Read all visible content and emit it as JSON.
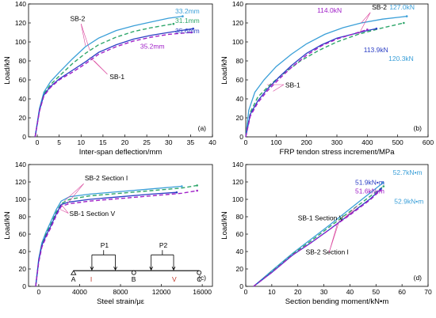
{
  "colors": {
    "sb2": "#3a9fd8",
    "sb2_dash": "#2ea66a",
    "sb1": "#2b3ec4",
    "sb1_dash": "#a020c8",
    "axis": "#000000",
    "pointer": "#d9409a"
  },
  "chart_data": [
    {
      "id": "a",
      "type": "line",
      "panel_label": "(a)",
      "xlabel": "Inter-span deflection/mm",
      "ylabel": "Load/kN",
      "xlim": [
        -2,
        40
      ],
      "ylim": [
        0,
        140
      ],
      "xticks": [
        "0",
        "5",
        "10",
        "15",
        "20",
        "25",
        "30",
        "35",
        "40"
      ],
      "yticks": [
        "0",
        "20",
        "40",
        "60",
        "80",
        "100",
        "120",
        "140"
      ],
      "grid": false,
      "series": [
        {
          "name": "SB-2",
          "style": "solid",
          "color": "sb2",
          "x": [
            -0.5,
            0.5,
            1.5,
            3,
            5,
            8,
            11,
            14,
            18,
            22,
            26,
            30,
            33.2
          ],
          "y": [
            0,
            30,
            47,
            58,
            68,
            82,
            95,
            104,
            112,
            117,
            121,
            125,
            127
          ]
        },
        {
          "name": "SB-2",
          "style": "dashed",
          "color": "sb2_dash",
          "x": [
            -0.5,
            0.5,
            1.5,
            3,
            5,
            8,
            11,
            14,
            18,
            22,
            26,
            31.1
          ],
          "y": [
            0,
            28,
            45,
            55,
            64,
            77,
            88,
            97,
            105,
            111,
            115,
            119
          ]
        },
        {
          "name": "SB-1",
          "style": "solid",
          "color": "sb1",
          "x": [
            -0.5,
            0.5,
            1.5,
            3,
            5,
            8,
            11,
            14,
            18,
            22,
            26,
            30,
            35.6
          ],
          "y": [
            0,
            28,
            44,
            53,
            61,
            70,
            79,
            89,
            97,
            103,
            107,
            110,
            114
          ]
        },
        {
          "name": "SB-1",
          "style": "dashed",
          "color": "sb1_dash",
          "x": [
            -0.5,
            0.5,
            1.5,
            3,
            5,
            8,
            11,
            14,
            18,
            22,
            26,
            30,
            35.2
          ],
          "y": [
            0,
            27,
            43,
            52,
            60,
            68,
            77,
            87,
            95,
            101,
            105,
            108,
            110
          ]
        }
      ],
      "labels": [
        {
          "text": "SB-2",
          "at": [
            7.5,
            122
          ]
        },
        {
          "text": "SB-1",
          "at": [
            16.5,
            61
          ]
        },
        {
          "text": "33.2mm",
          "at": [
            31.5,
            130
          ],
          "color": "sb2"
        },
        {
          "text": "31.1mm",
          "at": [
            31.5,
            120
          ],
          "color": "sb2_dash"
        },
        {
          "text": "35.6mm",
          "at": [
            31.5,
            109
          ],
          "color": "sb1"
        },
        {
          "text": "35.2mm",
          "at": [
            23.5,
            93
          ],
          "color": "sb1_dash"
        }
      ]
    },
    {
      "id": "b",
      "type": "line",
      "panel_label": "(b)",
      "xlabel": "FRP tendon stress increment/MPa",
      "ylabel": "Load/kN",
      "xlim": [
        0,
        600
      ],
      "ylim": [
        0,
        140
      ],
      "xticks": [
        "0",
        "100",
        "200",
        "300",
        "400",
        "500",
        "600"
      ],
      "yticks": [
        "0",
        "20",
        "40",
        "60",
        "80",
        "100",
        "120",
        "140"
      ],
      "grid": false,
      "series": [
        {
          "name": "SB-2",
          "style": "solid",
          "color": "sb2",
          "x": [
            0,
            10,
            30,
            60,
            100,
            150,
            200,
            260,
            320,
            380,
            450,
            530
          ],
          "y": [
            0,
            28,
            47,
            60,
            74,
            87,
            98,
            108,
            115,
            120,
            124,
            127
          ]
        },
        {
          "name": "SB-2",
          "style": "dashed",
          "color": "sb2_dash",
          "x": [
            0,
            15,
            40,
            80,
            130,
            180,
            240,
            300,
            370,
            440,
            520
          ],
          "y": [
            0,
            26,
            42,
            55,
            68,
            80,
            91,
            100,
            108,
            114,
            120
          ]
        },
        {
          "name": "SB-1",
          "style": "solid",
          "color": "sb1",
          "x": [
            0,
            15,
            40,
            70,
            110,
            150,
            200,
            250,
            300,
            350,
            400,
            430
          ],
          "y": [
            0,
            24,
            38,
            50,
            63,
            75,
            88,
            97,
            104,
            108,
            112,
            114
          ]
        },
        {
          "name": "SB-1",
          "style": "dashed",
          "color": "sb1_dash",
          "x": [
            0,
            15,
            40,
            70,
            110,
            150,
            200,
            250,
            300,
            350,
            400
          ],
          "y": [
            0,
            22,
            36,
            48,
            61,
            73,
            86,
            96,
            103,
            108,
            113
          ]
        }
      ],
      "labels": [
        {
          "text": "SB-2",
          "at": [
            415,
            134
          ]
        },
        {
          "text": "SB-1",
          "at": [
            130,
            52
          ]
        },
        {
          "text": "114.0kN",
          "at": [
            235,
            131
          ],
          "color": "sb1_dash"
        },
        {
          "text": "127.0kN",
          "at": [
            473,
            134
          ],
          "color": "sb2"
        },
        {
          "text": "113.9kN",
          "at": [
            388,
            89
          ],
          "color": "sb1"
        },
        {
          "text": "120.3kN",
          "at": [
            470,
            80
          ],
          "color": "sb2"
        }
      ]
    },
    {
      "id": "c",
      "type": "line",
      "panel_label": "(c)",
      "xlabel": "Steel strain/με",
      "ylabel": "Load/kN",
      "xlim": [
        -1000,
        17000
      ],
      "ylim": [
        0,
        140
      ],
      "xticks": [
        "0",
        "4000",
        "8000",
        "12000",
        "16000"
      ],
      "yticks": [
        "0",
        "20",
        "40",
        "60",
        "80",
        "100",
        "120",
        "140"
      ],
      "grid": false,
      "series": [
        {
          "name": "SB-2 Section I",
          "style": "solid",
          "color": "sb2",
          "x": [
            -300,
            0,
            300,
            700,
            1200,
            1700,
            2200,
            3000,
            5000,
            8000,
            11000,
            14000
          ],
          "y": [
            0,
            32,
            50,
            62,
            75,
            88,
            98,
            103,
            106,
            109,
            112,
            115
          ]
        },
        {
          "name": "SB-2 Section I",
          "style": "dashed",
          "color": "sb2_dash",
          "x": [
            -300,
            0,
            300,
            700,
            1200,
            1700,
            2200,
            3000,
            5000,
            8000,
            11000,
            14000,
            15500
          ],
          "y": [
            0,
            30,
            48,
            60,
            72,
            85,
            95,
            100,
            104,
            107,
            110,
            113,
            116
          ]
        },
        {
          "name": "SB-1 Section V",
          "style": "solid",
          "color": "sb1",
          "x": [
            -300,
            0,
            300,
            700,
            1200,
            1700,
            2200,
            3000,
            5000,
            8000,
            11000,
            13500
          ],
          "y": [
            0,
            30,
            47,
            58,
            70,
            83,
            94,
            97,
            100,
            103,
            106,
            108
          ]
        },
        {
          "name": "SB-1 Section V",
          "style": "dashed",
          "color": "sb1_dash",
          "x": [
            -300,
            0,
            300,
            700,
            1200,
            1700,
            2200,
            3000,
            5000,
            8000,
            11000,
            14000,
            15500
          ],
          "y": [
            0,
            28,
            45,
            56,
            68,
            81,
            92,
            95,
            98,
            101,
            104,
            107,
            110
          ]
        }
      ],
      "labels": [
        {
          "text": "SB-2 Section I",
          "at": [
            4500,
            122
          ]
        },
        {
          "text": "SB-1 Section V",
          "at": [
            3000,
            81
          ]
        }
      ],
      "inset": {
        "loads": [
          "P1",
          "P2"
        ],
        "supports": [
          "A",
          "B",
          "C"
        ],
        "sections": [
          "I",
          "V"
        ]
      }
    },
    {
      "id": "d",
      "type": "line",
      "panel_label": "(d)",
      "xlabel": "Section bending moment/kN•m",
      "ylabel": "Load/kN",
      "xlim": [
        0,
        70
      ],
      "ylim": [
        0,
        140
      ],
      "xticks": [
        "0",
        "10",
        "20",
        "30",
        "40",
        "50",
        "60",
        "70"
      ],
      "yticks": [
        "0",
        "20",
        "40",
        "60",
        "80",
        "100",
        "120",
        "140"
      ],
      "grid": false,
      "series": [
        {
          "name": "SB-1 Section V",
          "style": "solid",
          "color": "sb2",
          "x": [
            3,
            10,
            18,
            25,
            32,
            40,
            48,
            52.7
          ],
          "y": [
            0,
            18,
            38,
            54,
            70,
            89,
            108,
            119
          ]
        },
        {
          "name": "SB-1 Section V",
          "style": "dashed",
          "color": "sb2_dash",
          "x": [
            3,
            10,
            18,
            25,
            32,
            40,
            48,
            52.9
          ],
          "y": [
            0,
            17,
            37,
            52,
            68,
            86,
            104,
            115
          ]
        },
        {
          "name": "SB-2 Section I",
          "style": "solid",
          "color": "sb1",
          "x": [
            3,
            10,
            18,
            25,
            32,
            40,
            48,
            51.9
          ],
          "y": [
            0,
            16,
            36,
            50,
            65,
            83,
            101,
            112
          ]
        },
        {
          "name": "SB-2 Section I",
          "style": "dashed",
          "color": "sb1_dash",
          "x": [
            3,
            10,
            18,
            25,
            32,
            40,
            48,
            51.6
          ],
          "y": [
            0,
            16,
            36,
            50,
            65,
            82,
            100,
            110
          ]
        }
      ],
      "labels": [
        {
          "text": "SB-1 Section V",
          "at": [
            20,
            76
          ]
        },
        {
          "text": "SB-2 Section I",
          "at": [
            23,
            37
          ]
        },
        {
          "text": "51.9kN•m",
          "at": [
            42,
            117
          ],
          "color": "sb1"
        },
        {
          "text": "51.6kN•m",
          "at": [
            42,
            107
          ],
          "color": "sb1_dash"
        },
        {
          "text": "52.7kN•m",
          "at": [
            56.5,
            128
          ],
          "color": "sb2"
        },
        {
          "text": "52.9kN•m",
          "at": [
            57,
            95
          ],
          "color": "sb2"
        }
      ]
    }
  ]
}
